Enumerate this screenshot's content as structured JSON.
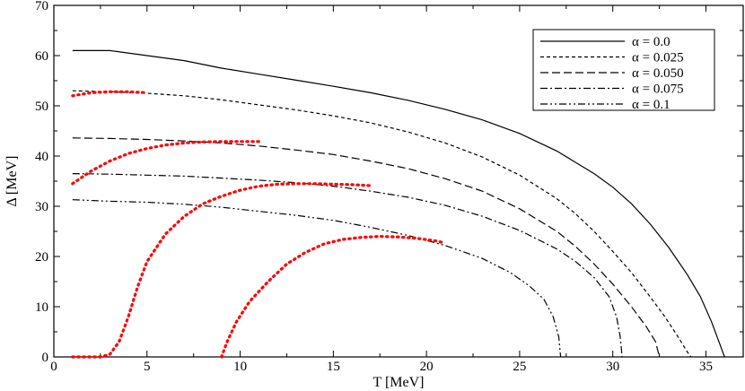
{
  "chart_data": {
    "type": "line",
    "title": "",
    "xlabel": "T [MeV]",
    "ylabel": "Δ [MeV]",
    "xlim": [
      0,
      37
    ],
    "ylim": [
      0,
      70
    ],
    "x_ticks": [
      0,
      5,
      10,
      15,
      20,
      25,
      30,
      35
    ],
    "y_ticks": [
      0,
      10,
      20,
      30,
      40,
      50,
      60,
      70
    ],
    "grid": false,
    "legend_position": "top-right",
    "series": [
      {
        "name": "α = 0.0",
        "dash": "solid",
        "color": "#000000",
        "points": [
          [
            1,
            61
          ],
          [
            3,
            61
          ],
          [
            5,
            60
          ],
          [
            7,
            59
          ],
          [
            9,
            57.5
          ],
          [
            11,
            56.3
          ],
          [
            13,
            55.1
          ],
          [
            15,
            53.9
          ],
          [
            17,
            52.6
          ],
          [
            19,
            51.1
          ],
          [
            21,
            49.3
          ],
          [
            23,
            47.2
          ],
          [
            25,
            44.5
          ],
          [
            27,
            41
          ],
          [
            29,
            36.5
          ],
          [
            30,
            33.8
          ],
          [
            31,
            30.5
          ],
          [
            32,
            26.5
          ],
          [
            33,
            21.8
          ],
          [
            34,
            16.4
          ],
          [
            34.7,
            12
          ],
          [
            35.3,
            7
          ],
          [
            35.8,
            2
          ],
          [
            36,
            0
          ]
        ]
      },
      {
        "name": "α = 0.025",
        "dash": "dashed-short",
        "color": "#000000",
        "points": [
          [
            1,
            53
          ],
          [
            3,
            52.8
          ],
          [
            5,
            52.5
          ],
          [
            7,
            52
          ],
          [
            9,
            51.2
          ],
          [
            11,
            50.2
          ],
          [
            13,
            49.2
          ],
          [
            15,
            48
          ],
          [
            17,
            46.6
          ],
          [
            19,
            44.8
          ],
          [
            21,
            42.6
          ],
          [
            23,
            39.8
          ],
          [
            25,
            36.2
          ],
          [
            27,
            31.5
          ],
          [
            28,
            28.5
          ],
          [
            29,
            25
          ],
          [
            30,
            21
          ],
          [
            31,
            16.8
          ],
          [
            32,
            12
          ],
          [
            32.8,
            8
          ],
          [
            33.5,
            4
          ],
          [
            34,
            1
          ],
          [
            34.2,
            0
          ]
        ]
      },
      {
        "name": "α = 0.050",
        "dash": "dashed-long",
        "color": "#000000",
        "points": [
          [
            1,
            43.6
          ],
          [
            3,
            43.5
          ],
          [
            5,
            43.3
          ],
          [
            7,
            43
          ],
          [
            9,
            42.6
          ],
          [
            11,
            42
          ],
          [
            13,
            41.2
          ],
          [
            15,
            40.3
          ],
          [
            17,
            39
          ],
          [
            19,
            37.5
          ],
          [
            21,
            35.5
          ],
          [
            23,
            33
          ],
          [
            25,
            29.5
          ],
          [
            27,
            25
          ],
          [
            28,
            22
          ],
          [
            29,
            18.5
          ],
          [
            30,
            14.5
          ],
          [
            31,
            10
          ],
          [
            31.8,
            6
          ],
          [
            32.3,
            3
          ],
          [
            32.5,
            0
          ]
        ]
      },
      {
        "name": "α = 0.075",
        "dash": "dash-dot",
        "color": "#000000",
        "points": [
          [
            1,
            36.5
          ],
          [
            3,
            36.4
          ],
          [
            5,
            36.2
          ],
          [
            7,
            36
          ],
          [
            9,
            35.6
          ],
          [
            11,
            35.2
          ],
          [
            13,
            34.7
          ],
          [
            15,
            34
          ],
          [
            17,
            33
          ],
          [
            19,
            31.8
          ],
          [
            21,
            30.2
          ],
          [
            23,
            28
          ],
          [
            25,
            25.2
          ],
          [
            27,
            21.5
          ],
          [
            28,
            19
          ],
          [
            29,
            15.8
          ],
          [
            29.8,
            12
          ],
          [
            30.2,
            8
          ],
          [
            30.4,
            4
          ],
          [
            30.5,
            0
          ]
        ]
      },
      {
        "name": "α = 0.1",
        "dash": "dash-dot-dot",
        "color": "#000000",
        "points": [
          [
            1,
            31.3
          ],
          [
            3,
            31
          ],
          [
            5,
            30.8
          ],
          [
            7,
            30.4
          ],
          [
            9,
            29.8
          ],
          [
            11,
            29
          ],
          [
            13,
            28.2
          ],
          [
            15,
            27.2
          ],
          [
            17,
            25.8
          ],
          [
            19,
            24.2
          ],
          [
            21,
            22.2
          ],
          [
            23,
            19.6
          ],
          [
            24.5,
            16.8
          ],
          [
            25.5,
            14.2
          ],
          [
            26.3,
            11.5
          ],
          [
            26.8,
            8
          ],
          [
            27.1,
            4
          ],
          [
            27.2,
            0
          ]
        ]
      },
      {
        "name": "",
        "dash": "dotted",
        "color": "#ff0000",
        "points": [
          [
            1,
            52
          ],
          [
            2,
            52.6
          ],
          [
            3,
            52.8
          ],
          [
            4,
            52.8
          ],
          [
            5,
            52.6
          ]
        ]
      },
      {
        "name": "",
        "dash": "dotted",
        "color": "#ff0000",
        "points": [
          [
            1,
            34.5
          ],
          [
            2,
            37
          ],
          [
            3,
            39
          ],
          [
            4,
            40.5
          ],
          [
            5,
            41.5
          ],
          [
            6,
            42.2
          ],
          [
            7,
            42.6
          ],
          [
            8,
            42.8
          ],
          [
            9,
            42.9
          ],
          [
            10,
            42.9
          ],
          [
            11,
            42.9
          ]
        ]
      },
      {
        "name": "",
        "dash": "dotted",
        "color": "#ff0000",
        "points": [
          [
            1,
            0
          ],
          [
            2.5,
            0
          ],
          [
            3,
            0.5
          ],
          [
            3.5,
            3
          ],
          [
            4,
            8
          ],
          [
            4.5,
            14
          ],
          [
            5,
            19
          ],
          [
            6,
            24.5
          ],
          [
            7,
            28
          ],
          [
            8,
            30.5
          ],
          [
            9,
            32
          ],
          [
            10,
            33.2
          ],
          [
            11,
            34
          ],
          [
            12,
            34.4
          ],
          [
            13,
            34.5
          ],
          [
            14,
            34.5
          ],
          [
            15,
            34.4
          ],
          [
            16,
            34.3
          ],
          [
            17,
            34.1
          ]
        ]
      },
      {
        "name": "",
        "dash": "dotted",
        "color": "#ff0000",
        "points": [
          [
            9,
            0
          ],
          [
            9.3,
            3
          ],
          [
            9.8,
            7
          ],
          [
            10.5,
            11
          ],
          [
            11.5,
            15
          ],
          [
            12.5,
            18.5
          ],
          [
            13.5,
            20.8
          ],
          [
            14.5,
            22.5
          ],
          [
            15.5,
            23.4
          ],
          [
            16.5,
            23.8
          ],
          [
            17.5,
            24
          ],
          [
            18.5,
            23.9
          ],
          [
            19.5,
            23.6
          ],
          [
            20.5,
            23.1
          ],
          [
            21,
            22.7
          ]
        ]
      }
    ]
  }
}
